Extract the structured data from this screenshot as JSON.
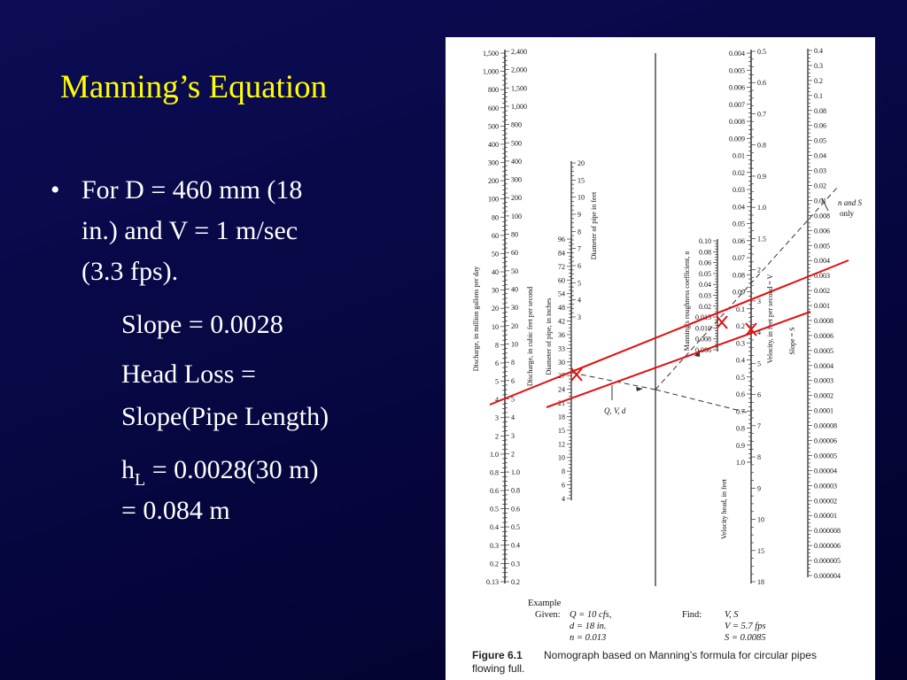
{
  "slide": {
    "title": "Manning’s Equation",
    "bullet_lines": [
      "For D = 460 mm (18",
      "in.) and V = 1 m/sec",
      "(3.3 fps)."
    ],
    "slope": "Slope = 0.0028",
    "head_loss_lines": [
      "Head Loss =",
      "Slope(Pipe Length)"
    ],
    "hl": {
      "symbol": "h",
      "subscript": "L",
      "rest": " = 0.0028(30 m)",
      "result": "= 0.084 m"
    }
  },
  "figure": {
    "scales": [
      {
        "title": "Discharge, in million gallons per day",
        "labels": [
          "1,500",
          "1,000",
          "800",
          "600",
          "500",
          "400",
          "300",
          "200",
          "100",
          "80",
          "60",
          "50",
          "40",
          "30",
          "20",
          "10",
          "8",
          "6",
          "5",
          "4",
          "3",
          "2",
          "1.0",
          "0.8",
          "0.6",
          "0.5",
          "0.4",
          "0.3",
          "0.2",
          "0.13"
        ]
      },
      {
        "title": "Discharge, in cubic feet per second",
        "labels": [
          "2,400",
          "2,000",
          "1,500",
          "1,000",
          "800",
          "500",
          "400",
          "300",
          "200",
          "100",
          "80",
          "60",
          "50",
          "40",
          "30",
          "20",
          "10",
          "8",
          "6",
          "5",
          "4",
          "3",
          "2",
          "1.0",
          "0.8",
          "0.6",
          "0.5",
          "0.4",
          "0.3",
          "0.2"
        ]
      },
      {
        "title": "Diameter of pipe, in inches",
        "labels": [
          "96",
          "84",
          "72",
          "60",
          "54",
          "48",
          "42",
          "36",
          "33",
          "30",
          "27",
          "24",
          "21",
          "18",
          "15",
          "12",
          "10",
          "8",
          "6",
          "4"
        ]
      },
      {
        "title": "Diameter of pipe in feet",
        "labels": [
          "20",
          "15",
          "10",
          "9",
          "8",
          "7",
          "6",
          "5",
          "4",
          "3"
        ]
      },
      {
        "title": "Manning’s roughness coefficient, n",
        "labels": [
          "0.10",
          "0.08",
          "0.06",
          "0.05",
          "0.04",
          "0.03",
          "0.02",
          "0.015",
          "0.010",
          "0.008",
          "0.006"
        ]
      },
      {
        "title": "Velocity head, in feet",
        "labels": [
          "0.004",
          "0.005",
          "0.006",
          "0.007",
          "0.008",
          "0.009",
          "0.01",
          "0.02",
          "0.03",
          "0.04",
          "0.05",
          "0.06",
          "0.07",
          "0.08",
          "0.09",
          "0.1",
          "0.2",
          "0.3",
          "0.4",
          "0.5",
          "0.6",
          "0.7",
          "0.8",
          "0.9",
          "1.0"
        ]
      },
      {
        "title": "Velocity, in feet per second = V",
        "labels": [
          "0.5",
          "0.6",
          "0.7",
          "0.8",
          "0.9",
          "1.0",
          "1.5",
          "2",
          "3",
          "4",
          "5",
          "6",
          "7",
          "8",
          "9",
          "10",
          "15",
          "18"
        ]
      },
      {
        "title": "Slope = S",
        "labels": [
          "0.4",
          "0.3",
          "0.2",
          "0.1",
          "0.08",
          "0.06",
          "0.05",
          "0.04",
          "0.03",
          "0.02",
          "0.01",
          "0.008",
          "0.006",
          "0.005",
          "0.004",
          "0.003",
          "0.002",
          "0.001",
          "0.0008",
          "0.0006",
          "0.0005",
          "0.0004",
          "0.0003",
          "0.0002",
          "0.0001",
          "0.00008",
          "0.00006",
          "0.00005",
          "0.00004",
          "0.00003",
          "0.00002",
          "0.00001",
          "0.000008",
          "0.000006",
          "0.000005",
          "0.000004"
        ]
      }
    ],
    "annotations": {
      "ns": [
        "n and S",
        "only"
      ],
      "qvd": "Q, V, d"
    },
    "example": {
      "heading": "Example",
      "given_label": "Given:",
      "given": [
        "Q = 10 cfs,",
        "d = 18 in.",
        "n = 0.013"
      ],
      "find_label": "Find:",
      "find": [
        "V, S",
        "V = 5.7 fps",
        "S = 0.0085"
      ]
    },
    "caption": {
      "label": "Figure 6.1",
      "text_lines": [
        "Nomograph based on Manning’s formula for circular pipes",
        "flowing full."
      ]
    }
  }
}
